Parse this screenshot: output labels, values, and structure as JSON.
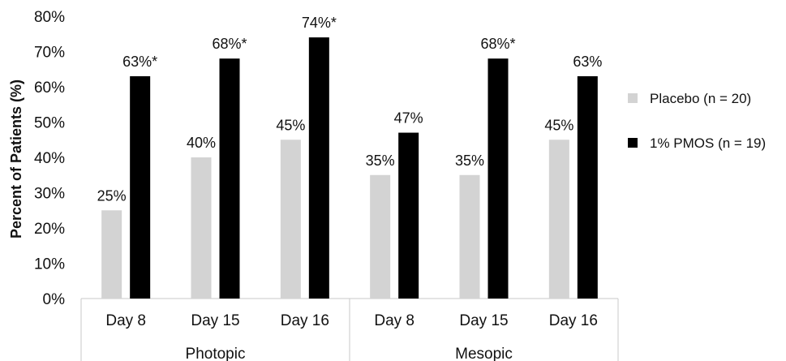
{
  "chart_data": {
    "type": "bar",
    "ylabel": "Percent of Patients (%)",
    "ylim": [
      0,
      80
    ],
    "yticks": [
      "0%",
      "10%",
      "20%",
      "30%",
      "40%",
      "50%",
      "60%",
      "70%",
      "80%"
    ],
    "grid": false,
    "legend_position": "right",
    "groups": [
      {
        "label": "Photopic",
        "categories": [
          "Day 8",
          "Day 15",
          "Day 16"
        ]
      },
      {
        "label": "Mesopic",
        "categories": [
          "Day 8",
          "Day 15",
          "Day 16"
        ]
      }
    ],
    "series": [
      {
        "name": "Placebo (n = 20)",
        "color": "#d3d3d3",
        "values": [
          25,
          40,
          45,
          35,
          35,
          45
        ],
        "labels": [
          "25%",
          "40%",
          "45%",
          "35%",
          "35%",
          "45%"
        ]
      },
      {
        "name": "1% PMOS (n = 19)",
        "color": "#000000",
        "values": [
          63,
          68,
          74,
          47,
          68,
          63
        ],
        "labels": [
          "63%*",
          "68%*",
          "74%*",
          "47%",
          "68%*",
          "63%"
        ]
      }
    ]
  }
}
